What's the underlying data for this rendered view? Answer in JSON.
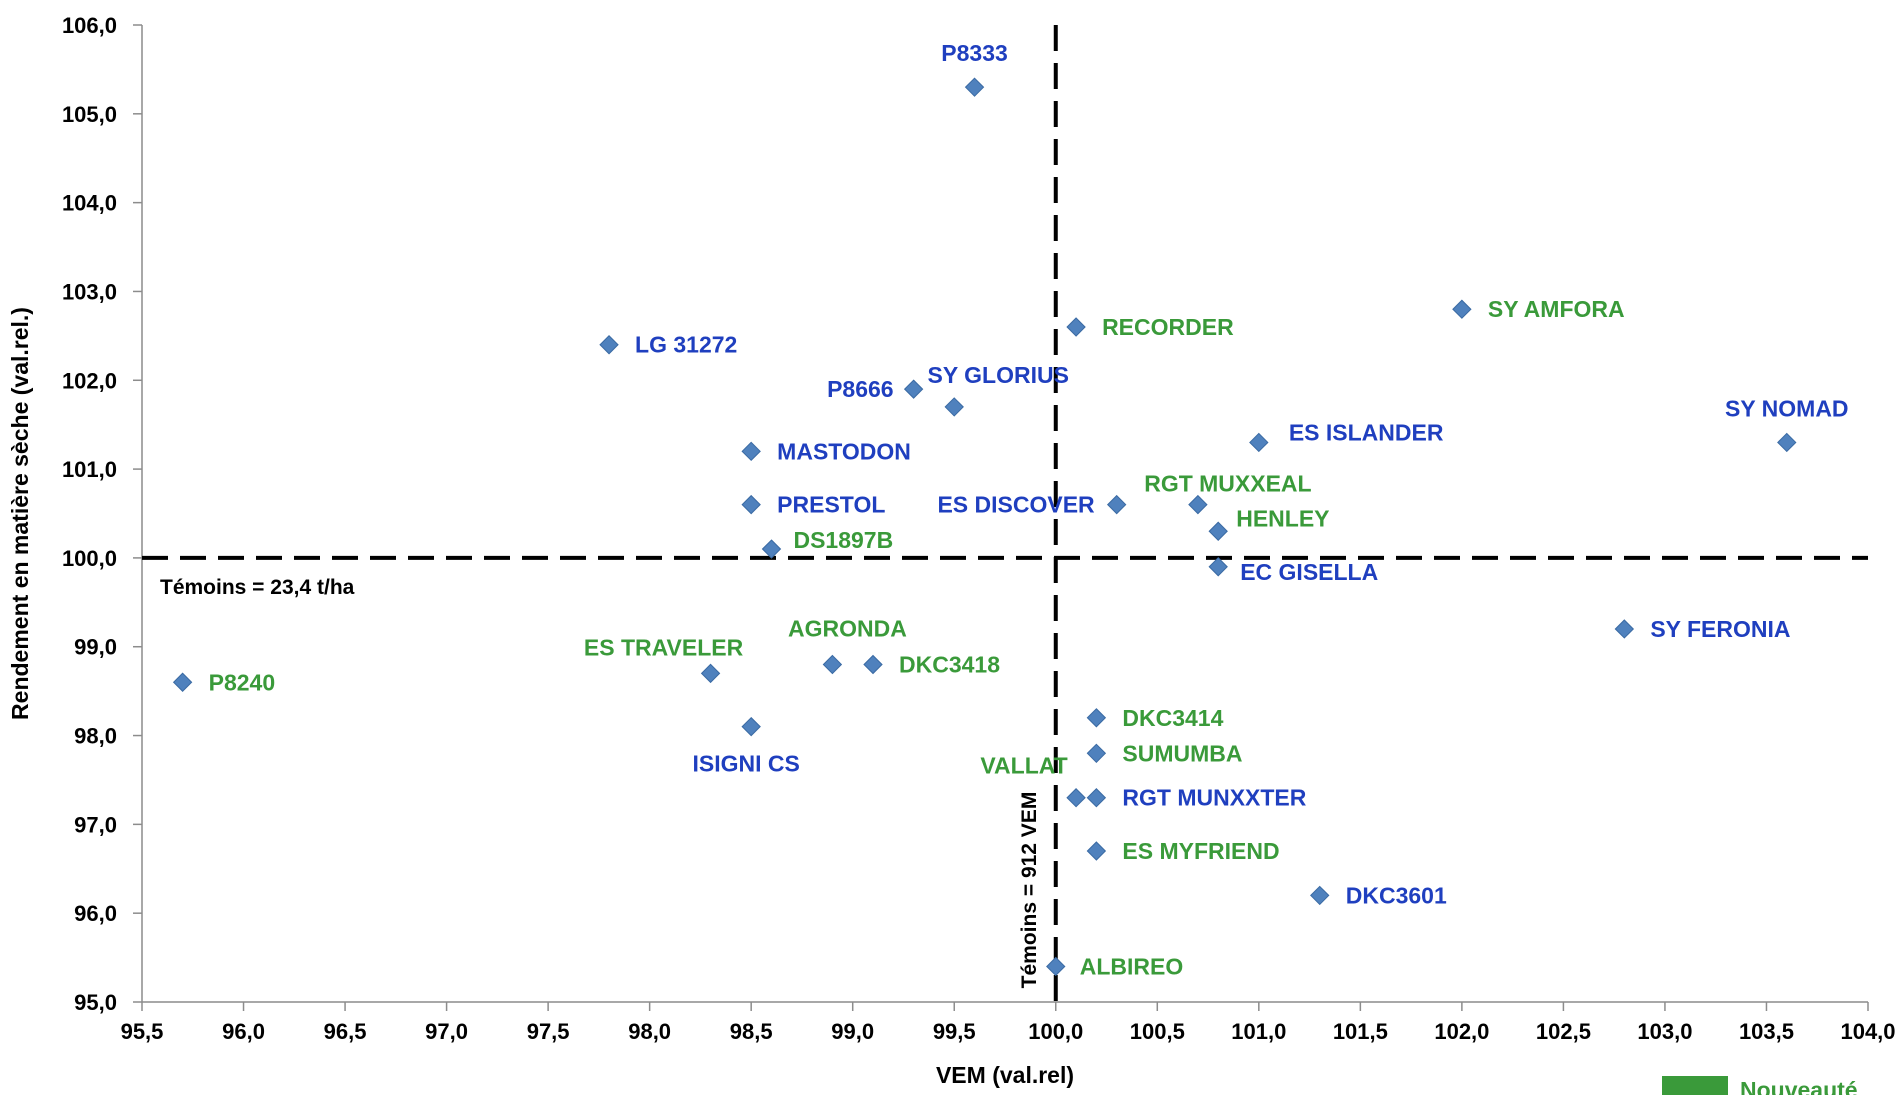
{
  "chart_data": {
    "type": "scatter",
    "xlabel": "VEM (val.rel)",
    "ylabel": "Rendement en matière sèche (val.rel.)",
    "xlim": [
      95.5,
      104.0
    ],
    "ylim": [
      95.0,
      106.0
    ],
    "x_ticks": [
      "95,5",
      "96,0",
      "96,5",
      "97,0",
      "97,5",
      "98,0",
      "98,5",
      "99,0",
      "99,5",
      "100,0",
      "100,5",
      "101,0",
      "101,5",
      "102,0",
      "102,5",
      "103,0",
      "103,5",
      "104,0"
    ],
    "y_ticks": [
      "95,0",
      "96,0",
      "97,0",
      "98,0",
      "99,0",
      "100,0",
      "101,0",
      "102,0",
      "103,0",
      "104,0",
      "105,0",
      "106,0"
    ],
    "grid": false,
    "marker_color": "#4f81bd",
    "reference_lines": {
      "vertical": {
        "x": 100.0,
        "label": "Témoins = 912 VEM"
      },
      "horizontal": {
        "y": 100.0,
        "label": "Témoins = 23,4 t/ha"
      }
    },
    "colors": {
      "nouveaute": "#3a9a3a",
      "standard": "#1f3fbf"
    },
    "legend": {
      "label": "Nouveauté",
      "color": "#3a9a3a",
      "position": "bottom-right"
    },
    "points": [
      {
        "name": "P8333",
        "x": 99.6,
        "y": 105.3,
        "nouveaute": false
      },
      {
        "name": "LG 31272",
        "x": 97.8,
        "y": 102.4,
        "nouveaute": false
      },
      {
        "name": "P8666",
        "x": 99.3,
        "y": 101.9,
        "nouveaute": false
      },
      {
        "name": "SY GLORIUS",
        "x": 99.5,
        "y": 101.7,
        "nouveaute": false
      },
      {
        "name": "RECORDER",
        "x": 100.1,
        "y": 102.6,
        "nouveaute": true
      },
      {
        "name": "SY AMFORA",
        "x": 102.0,
        "y": 102.8,
        "nouveaute": true
      },
      {
        "name": "SY NOMAD",
        "x": 103.6,
        "y": 101.3,
        "nouveaute": false
      },
      {
        "name": "MASTODON",
        "x": 98.5,
        "y": 101.2,
        "nouveaute": false
      },
      {
        "name": "ES ISLANDER",
        "x": 101.0,
        "y": 101.3,
        "nouveaute": false
      },
      {
        "name": "PRESTOL",
        "x": 98.5,
        "y": 100.6,
        "nouveaute": false
      },
      {
        "name": "ES DISCOVER",
        "x": 100.3,
        "y": 100.6,
        "nouveaute": false
      },
      {
        "name": "RGT MUXXEAL",
        "x": 100.7,
        "y": 100.6,
        "nouveaute": true
      },
      {
        "name": "HENLEY",
        "x": 100.8,
        "y": 100.3,
        "nouveaute": true
      },
      {
        "name": "DS1897B",
        "x": 98.6,
        "y": 100.1,
        "nouveaute": true
      },
      {
        "name": "EC GISELLA",
        "x": 100.8,
        "y": 99.9,
        "nouveaute": false
      },
      {
        "name": "SY FERONIA",
        "x": 102.8,
        "y": 99.2,
        "nouveaute": false
      },
      {
        "name": "AGRONDA",
        "x": 98.9,
        "y": 98.8,
        "nouveaute": true
      },
      {
        "name": "DKC3418",
        "x": 99.1,
        "y": 98.8,
        "nouveaute": true
      },
      {
        "name": "ES TRAVELER",
        "x": 98.3,
        "y": 98.7,
        "nouveaute": true
      },
      {
        "name": "P8240",
        "x": 95.7,
        "y": 98.6,
        "nouveaute": true
      },
      {
        "name": "ISIGNI CS",
        "x": 98.5,
        "y": 98.1,
        "nouveaute": false
      },
      {
        "name": "DKC3414",
        "x": 100.2,
        "y": 98.2,
        "nouveaute": true
      },
      {
        "name": "SUMUMBA",
        "x": 100.2,
        "y": 97.8,
        "nouveaute": true
      },
      {
        "name": "VALLAT",
        "x": 100.1,
        "y": 97.3,
        "nouveaute": true
      },
      {
        "name": "RGT MUNXXTER",
        "x": 100.2,
        "y": 97.3,
        "nouveaute": false
      },
      {
        "name": "ES MYFRIEND",
        "x": 100.2,
        "y": 96.7,
        "nouveaute": true
      },
      {
        "name": "DKC3601",
        "x": 101.3,
        "y": 96.2,
        "nouveaute": false
      },
      {
        "name": "ALBIREO",
        "x": 100.0,
        "y": 95.4,
        "nouveaute": true
      }
    ]
  }
}
